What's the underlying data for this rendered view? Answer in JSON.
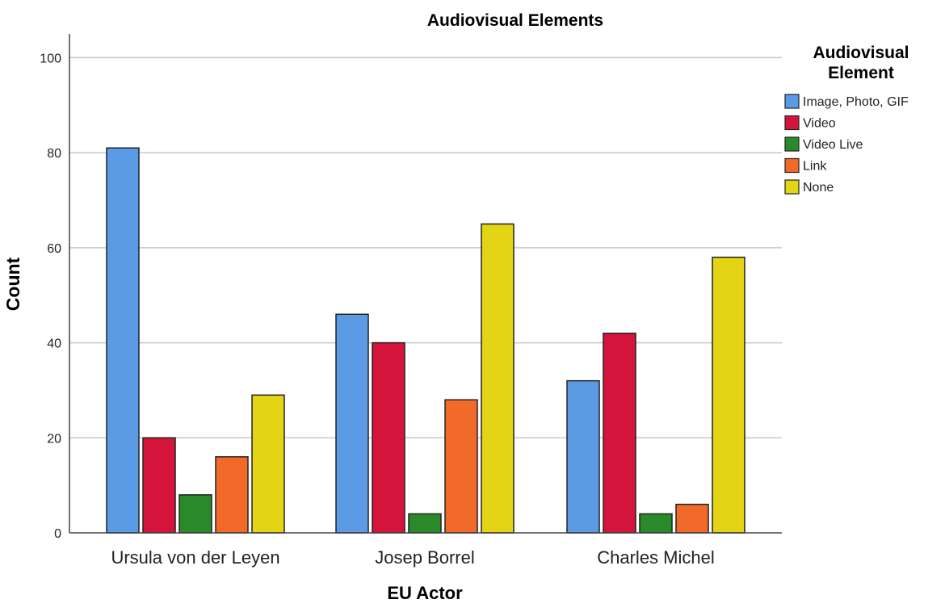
{
  "chart_data": {
    "type": "bar",
    "title": "Audiovisual Elements",
    "xlabel": "EU Actor",
    "ylabel": "Count",
    "categories": [
      "Ursula von der Leyen",
      "Josep Borrel",
      "Charles Michel"
    ],
    "ylim": [
      0,
      105
    ],
    "yticks": [
      0,
      20,
      40,
      60,
      80,
      100
    ],
    "grid": true,
    "legend": {
      "title": "Audiovisual Element",
      "placement": "right"
    },
    "series": [
      {
        "name": "Image, Photo, GIF",
        "color": "#5b9be6",
        "values": [
          81,
          46,
          32
        ]
      },
      {
        "name": "Video",
        "color": "#d4143a",
        "values": [
          20,
          40,
          42
        ]
      },
      {
        "name": "Video Live",
        "color": "#2a8a2a",
        "values": [
          8,
          4,
          4
        ]
      },
      {
        "name": "Link",
        "color": "#f26a2a",
        "values": [
          16,
          28,
          6
        ]
      },
      {
        "name": "None",
        "color": "#e3d416",
        "values": [
          29,
          65,
          58
        ]
      }
    ]
  }
}
